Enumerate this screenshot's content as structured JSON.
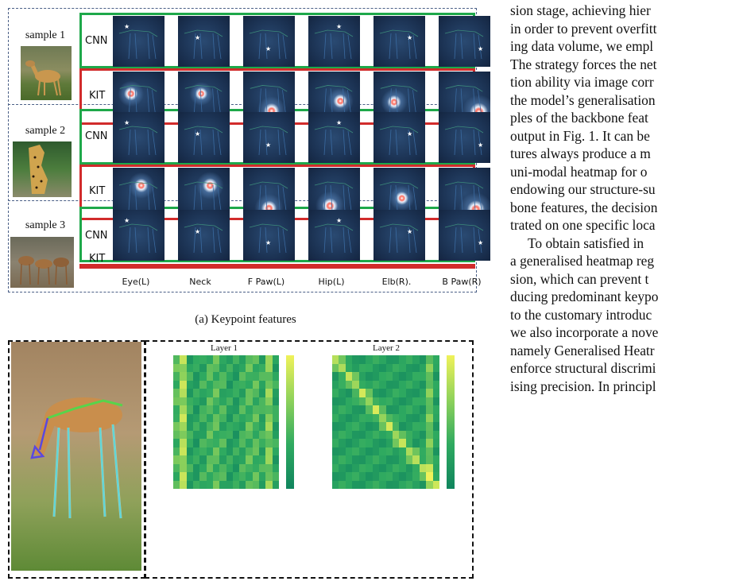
{
  "figure": {
    "samples": [
      {
        "label": "sample 1"
      },
      {
        "label": "sample 2"
      },
      {
        "label": "sample 3"
      }
    ],
    "row_tags": {
      "cnn": "CNN",
      "kit": "KIT"
    },
    "column_labels": [
      "Eye(L)",
      "Neck",
      "F Paw(L)",
      "Hip(L)",
      "Elb(R).",
      "B Paw(R)"
    ],
    "caption_a": "(a) Keypoint features",
    "layers": [
      {
        "title": "Layer 1"
      },
      {
        "title": "Layer 2"
      }
    ],
    "colors": {
      "cnn_frame": "#1ea84a",
      "kit_frame": "#d12b2b",
      "dashed_border": "#4a5f86",
      "feature_bg": "#1d3557"
    }
  },
  "text": {
    "lines": [
      "sion stage, achieving hier",
      "in order to prevent overfitt",
      "ing data volume, we empl",
      "The strategy forces the net",
      "tion ability via image corr",
      "the model’s generalisation",
      "ples of the backbone feat",
      "output in Fig. 1. It can be",
      "tures always produce a m",
      "uni-modal heatmap for o",
      "endowing our structure-su",
      "bone features, the decision",
      "trated on one specific loca",
      "   To obtain satisfied in",
      "a generalised heatmap reg",
      "sion, which can prevent t",
      "ducing predominant keypo",
      "to the customary introduc",
      "we also incorporate a nove",
      "namely Generalised Heatr",
      "enforce structural discrimi",
      "ising precision. In principl"
    ]
  }
}
